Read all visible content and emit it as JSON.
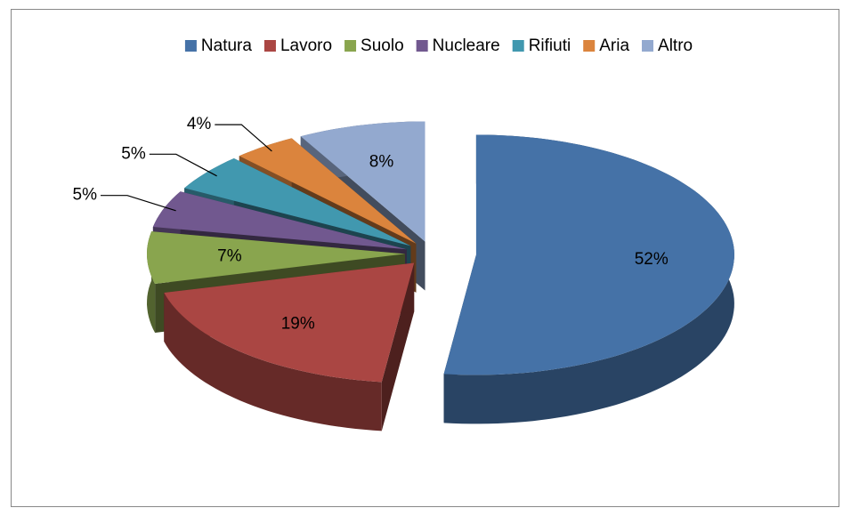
{
  "chart_data": {
    "type": "pie",
    "categories": [
      "Natura",
      "Lavoro",
      "Suolo",
      "Nucleare",
      "Rifiuti",
      "Aria",
      "Altro"
    ],
    "values": [
      52,
      19,
      7,
      5,
      5,
      4,
      8
    ],
    "value_labels": [
      "52%",
      "19%",
      "7%",
      "5%",
      "5%",
      "4%",
      "8%"
    ],
    "colors": [
      "#4572a7",
      "#aa4643",
      "#89a54e",
      "#71588f",
      "#4198af",
      "#db843d",
      "#93a9cf"
    ],
    "legend": "top"
  }
}
